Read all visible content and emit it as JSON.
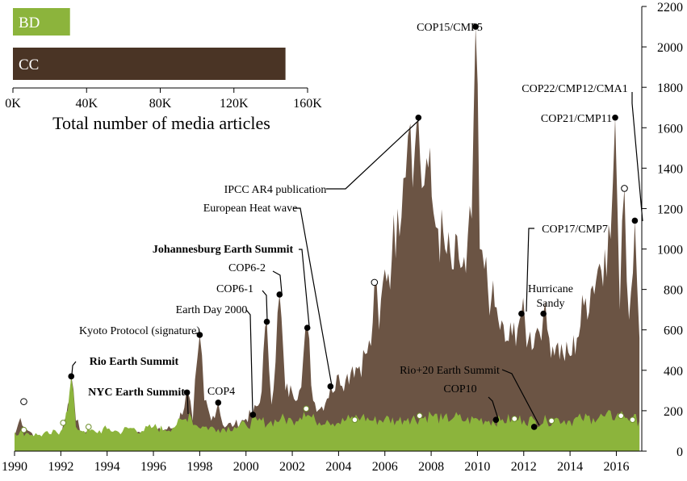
{
  "chart_data": [
    {
      "type": "bar",
      "orientation": "horizontal",
      "categories": [
        "BD",
        "CC"
      ],
      "values": [
        31000,
        148000
      ],
      "colors": {
        "BD": "#8cb43c",
        "CC": "#4a3425"
      },
      "xlabel": "Total number of media articles",
      "xlim": [
        0,
        160000
      ],
      "xticks": [
        {
          "value": 0,
          "label": "0K"
        },
        {
          "value": 40000,
          "label": "40K"
        },
        {
          "value": 80000,
          "label": "80K"
        },
        {
          "value": 120000,
          "label": "120K"
        },
        {
          "value": 160000,
          "label": "160K"
        }
      ],
      "grid": false,
      "legend": "none"
    },
    {
      "type": "area",
      "xlim": [
        1990,
        2017.1
      ],
      "ylim": [
        0,
        2200
      ],
      "y_axis_side": "right",
      "xticks": [
        "1990",
        "1992",
        "1994",
        "1996",
        "1998",
        "2000",
        "2002",
        "2004",
        "2006",
        "2008",
        "2010",
        "2012",
        "2014",
        "2016"
      ],
      "yticks": [
        "0",
        "200",
        "400",
        "600",
        "800",
        "1000",
        "1200",
        "1400",
        "1600",
        "1800",
        "2000",
        "2200"
      ],
      "grid": false,
      "series": [
        {
          "name": "CC",
          "color": "#6b5444",
          "anchors": [
            [
              1990.0,
              75
            ],
            [
              1990.25,
              165
            ],
            [
              1990.5,
              110
            ],
            [
              1990.75,
              90
            ],
            [
              1991.0,
              65
            ],
            [
              1991.5,
              55
            ],
            [
              1992.0,
              75
            ],
            [
              1992.3,
              230
            ],
            [
              1992.45,
              375
            ],
            [
              1992.65,
              150
            ],
            [
              1993.0,
              85
            ],
            [
              1993.5,
              75
            ],
            [
              1994.0,
              70
            ],
            [
              1995.0,
              85
            ],
            [
              1996.0,
              95
            ],
            [
              1997.0,
              120
            ],
            [
              1997.5,
              290
            ],
            [
              1997.7,
              150
            ],
            [
              1997.9,
              460
            ],
            [
              1998.0,
              575
            ],
            [
              1998.2,
              250
            ],
            [
              1998.5,
              150
            ],
            [
              1998.8,
              240
            ],
            [
              1999.0,
              130
            ],
            [
              1999.5,
              130
            ],
            [
              2000.0,
              160
            ],
            [
              2000.3,
              190
            ],
            [
              2000.6,
              240
            ],
            [
              2000.9,
              640
            ],
            [
              2001.1,
              230
            ],
            [
              2001.45,
              775
            ],
            [
              2001.7,
              300
            ],
            [
              2002.0,
              290
            ],
            [
              2002.3,
              300
            ],
            [
              2002.65,
              620
            ],
            [
              2002.9,
              250
            ],
            [
              2003.2,
              210
            ],
            [
              2003.5,
              260
            ],
            [
              2003.65,
              320
            ],
            [
              2003.85,
              300
            ],
            [
              2004.0,
              380
            ],
            [
              2004.3,
              350
            ],
            [
              2004.6,
              420
            ],
            [
              2004.9,
              420
            ],
            [
              2005.15,
              480
            ],
            [
              2005.4,
              520
            ],
            [
              2005.55,
              830
            ],
            [
              2005.75,
              600
            ],
            [
              2006.0,
              900
            ],
            [
              2006.3,
              950
            ],
            [
              2006.55,
              1200
            ],
            [
              2006.8,
              1350
            ],
            [
              2007.0,
              1560
            ],
            [
              2007.1,
              1620
            ],
            [
              2007.3,
              1500
            ],
            [
              2007.45,
              1640
            ],
            [
              2007.6,
              1300
            ],
            [
              2007.8,
              1450
            ],
            [
              2008.1,
              1180
            ],
            [
              2008.3,
              1100
            ],
            [
              2008.6,
              1000
            ],
            [
              2008.9,
              900
            ],
            [
              2009.2,
              950
            ],
            [
              2009.5,
              880
            ],
            [
              2009.75,
              1150
            ],
            [
              2009.92,
              2100
            ],
            [
              2010.1,
              1000
            ],
            [
              2010.3,
              900
            ],
            [
              2010.6,
              750
            ],
            [
              2010.9,
              650
            ],
            [
              2011.2,
              540
            ],
            [
              2011.5,
              570
            ],
            [
              2011.9,
              680
            ],
            [
              2012.2,
              550
            ],
            [
              2012.5,
              580
            ],
            [
              2012.85,
              680
            ],
            [
              2013.1,
              560
            ],
            [
              2013.4,
              520
            ],
            [
              2013.7,
              480
            ],
            [
              2014.0,
              470
            ],
            [
              2014.3,
              560
            ],
            [
              2014.6,
              720
            ],
            [
              2014.9,
              800
            ],
            [
              2015.2,
              900
            ],
            [
              2015.5,
              1000
            ],
            [
              2015.75,
              1050
            ],
            [
              2015.95,
              1650
            ],
            [
              2016.15,
              700
            ],
            [
              2016.35,
              1300
            ],
            [
              2016.55,
              650
            ],
            [
              2016.8,
              1140
            ],
            [
              2017.0,
              560
            ]
          ]
        },
        {
          "name": "BD",
          "color": "#8cb43c",
          "anchors": [
            [
              1990.0,
              95
            ],
            [
              1990.5,
              90
            ],
            [
              1991.0,
              80
            ],
            [
              1991.5,
              85
            ],
            [
              1992.0,
              100
            ],
            [
              1992.3,
              200
            ],
            [
              1992.45,
              365
            ],
            [
              1992.65,
              120
            ],
            [
              1993.0,
              100
            ],
            [
              1993.5,
              95
            ],
            [
              1994.0,
              110
            ],
            [
              1994.5,
              95
            ],
            [
              1995.0,
              115
            ],
            [
              1995.5,
              100
            ],
            [
              1996.0,
              120
            ],
            [
              1996.5,
              105
            ],
            [
              1997.0,
              130
            ],
            [
              1997.4,
              160
            ],
            [
              1997.55,
              190
            ],
            [
              1997.8,
              130
            ],
            [
              1998.2,
              120
            ],
            [
              1998.8,
              110
            ],
            [
              1999.5,
              120
            ],
            [
              2000.0,
              130
            ],
            [
              2000.5,
              150
            ],
            [
              2001.0,
              140
            ],
            [
              2001.5,
              160
            ],
            [
              2002.0,
              150
            ],
            [
              2002.5,
              195
            ],
            [
              2003.0,
              150
            ],
            [
              2003.5,
              155
            ],
            [
              2004.0,
              140
            ],
            [
              2004.5,
              160
            ],
            [
              2005.0,
              170
            ],
            [
              2005.5,
              150
            ],
            [
              2006.0,
              160
            ],
            [
              2006.5,
              150
            ],
            [
              2007.0,
              165
            ],
            [
              2007.5,
              160
            ],
            [
              2008.0,
              180
            ],
            [
              2008.5,
              155
            ],
            [
              2009.0,
              170
            ],
            [
              2009.5,
              150
            ],
            [
              2010.0,
              160
            ],
            [
              2010.5,
              150
            ],
            [
              2011.0,
              150
            ],
            [
              2011.5,
              160
            ],
            [
              2012.0,
              155
            ],
            [
              2012.5,
              150
            ],
            [
              2013.0,
              150
            ],
            [
              2013.5,
              160
            ],
            [
              2014.0,
              150
            ],
            [
              2014.5,
              160
            ],
            [
              2015.0,
              165
            ],
            [
              2015.5,
              170
            ],
            [
              2016.0,
              175
            ],
            [
              2016.3,
              180
            ],
            [
              2016.7,
              160
            ],
            [
              2017.0,
              150
            ]
          ]
        }
      ],
      "annotations": [
        {
          "label": "COP15/CMP5",
          "x": 2009.92,
          "y": 2100,
          "bold": false
        },
        {
          "label": "COP22/CMP12/CMA1",
          "x": 2016.8,
          "y": 1140,
          "bold": false
        },
        {
          "label": "COP21/CMP11",
          "x": 2015.95,
          "y": 1650,
          "bold": false
        },
        {
          "label": "IPCC AR4 publication",
          "x": 2007.45,
          "y": 1650,
          "bold": false
        },
        {
          "label": "European Heat wave",
          "x": 2003.65,
          "y": 320,
          "bold": false
        },
        {
          "label": "COP17/CMP7",
          "x": 2011.9,
          "y": 680,
          "bold": false
        },
        {
          "label": "Johannesburg Earth Summit",
          "x": 2002.65,
          "y": 610,
          "bold": true
        },
        {
          "label": "COP6-2",
          "x": 2001.45,
          "y": 775,
          "bold": false
        },
        {
          "label": "COP6-1",
          "x": 2000.9,
          "y": 640,
          "bold": false
        },
        {
          "label": "Earth Day 2000",
          "x": 2000.3,
          "y": 180,
          "bold": false
        },
        {
          "label": "Hurricane Sandy",
          "x": 2012.85,
          "y": 680,
          "bold": false
        },
        {
          "label": "Kyoto Protocol (signature)",
          "x": 1998.0,
          "y": 575,
          "bold": false
        },
        {
          "label": "Rio Earth Summit",
          "x": 1992.45,
          "y": 370,
          "bold": true
        },
        {
          "label": "Rio+20 Earth Summit",
          "x": 2012.45,
          "y": 120,
          "bold": false
        },
        {
          "label": "NYC Earth Summit",
          "x": 1997.45,
          "y": 290,
          "bold": true
        },
        {
          "label": "COP4",
          "x": 1998.8,
          "y": 240,
          "bold": false
        },
        {
          "label": "COP10",
          "x": 2010.8,
          "y": 155,
          "bold": false
        }
      ],
      "open_markers": [
        {
          "x": 1990.4,
          "y": 245
        },
        {
          "x": 2005.55,
          "y": 835
        },
        {
          "x": 2016.35,
          "y": 1300
        }
      ],
      "bd_markers": [
        {
          "x": 1990.4,
          "y": 105
        },
        {
          "x": 1992.1,
          "y": 140
        },
        {
          "x": 1993.2,
          "y": 120
        },
        {
          "x": 2002.6,
          "y": 210
        },
        {
          "x": 2004.7,
          "y": 155
        },
        {
          "x": 2007.5,
          "y": 175
        },
        {
          "x": 2011.6,
          "y": 160
        },
        {
          "x": 2013.2,
          "y": 150
        },
        {
          "x": 2016.2,
          "y": 175
        },
        {
          "x": 2016.7,
          "y": 155
        }
      ]
    }
  ]
}
